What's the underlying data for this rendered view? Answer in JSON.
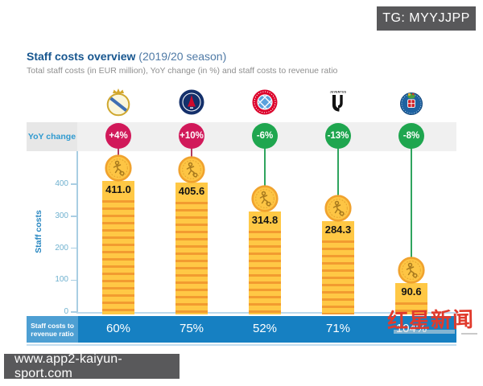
{
  "badge": {
    "label": "TG: MYYJJPP"
  },
  "header": {
    "title": "Staff costs overview",
    "season": "(2019/20 season)",
    "subtitle": "Total staff costs (in EUR million), YoY change (in %) and staff costs to revenue ratio"
  },
  "rows": {
    "yoy_label": "YoY change",
    "ratio_label_line1": "Staff costs to",
    "ratio_label_line2": "revenue ratio"
  },
  "watermarks": {
    "site": "www.app2-kaiyun-sport.com",
    "news_agency": "红星新闻"
  },
  "chart_data": {
    "type": "bar",
    "title": "Staff costs overview (2019/20 season)",
    "subtitle": "Total staff costs (in EUR million), YoY change (in %) and staff costs to revenue ratio",
    "categories": [
      "Real Madrid",
      "Paris Saint-Germain",
      "Bayern München",
      "Juventus",
      "FC Porto"
    ],
    "series": [
      {
        "name": "Staff costs (EUR million)",
        "values": [
          411.0,
          405.6,
          314.8,
          284.3,
          90.6
        ]
      },
      {
        "name": "YoY change",
        "values": [
          "+4%",
          "+10%",
          "-6%",
          "-13%",
          "-8%"
        ]
      },
      {
        "name": "Staff costs to revenue ratio",
        "values": [
          "60%",
          "75%",
          "52%",
          "71%",
          "104%"
        ]
      }
    ],
    "value_labels": [
      "411.0",
      "405.6",
      "314.8",
      "284.3",
      "90.6"
    ],
    "ylabel": "Staff costs",
    "yticks": [
      0,
      100,
      200,
      300,
      400
    ],
    "ylim": [
      0,
      450
    ],
    "grid": false,
    "legend_position": "none"
  },
  "clubs": [
    {
      "name": "Real Madrid",
      "logo": "real-madrid",
      "yoy": "+4%",
      "yoy_positive": true,
      "staff_costs": 411.0,
      "value_label": "411.0",
      "ratio": "60%"
    },
    {
      "name": "Paris Saint-Germain",
      "logo": "psg",
      "yoy": "+10%",
      "yoy_positive": true,
      "staff_costs": 405.6,
      "value_label": "405.6",
      "ratio": "75%"
    },
    {
      "name": "Bayern München",
      "logo": "bayern",
      "yoy": "-6%",
      "yoy_positive": false,
      "staff_costs": 314.8,
      "value_label": "314.8",
      "ratio": "52%"
    },
    {
      "name": "Juventus",
      "logo": "juventus",
      "yoy": "-13%",
      "yoy_positive": false,
      "staff_costs": 284.3,
      "value_label": "284.3",
      "ratio": "71%"
    },
    {
      "name": "FC Porto",
      "logo": "porto",
      "yoy": "-8%",
      "yoy_positive": false,
      "staff_costs": 90.6,
      "value_label": "90.6",
      "ratio": "104%"
    }
  ],
  "colors": {
    "yoy_positive": "#d1195a",
    "yoy_negative": "#1fa64f",
    "connector_positive": "#b13a5e",
    "connector_negative": "#2fa45e",
    "bar_yellow": "#ffc845",
    "bar_stripe": "#f29b30",
    "band_blue": "#1680c2",
    "band_blue_light": "#4d9fd3",
    "title_blue": "#17568f",
    "axis_blue": "#a9cee3",
    "badge_gray": "#58585a",
    "redstar_red": "#e13a2c"
  }
}
